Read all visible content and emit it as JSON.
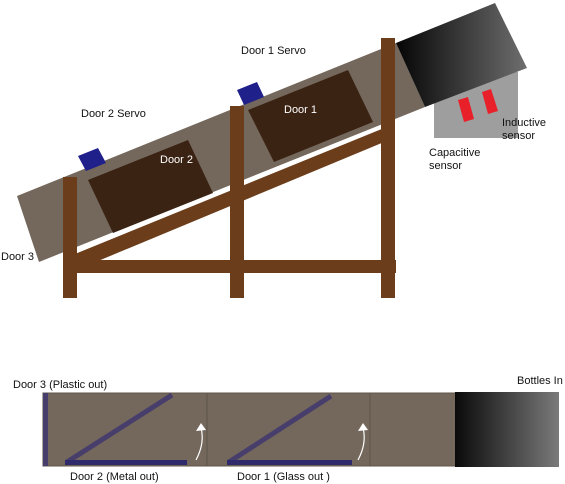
{
  "side_view": {
    "door1_servo_label": "Door 1 Servo",
    "door2_servo_label": "Door 2 Servo",
    "door1_label": "Door 1",
    "door2_label": "Door 2",
    "door3_label": "Door 3",
    "inductive_sensor_label": [
      "Inductive",
      "sensor"
    ],
    "capacitive_sensor_label": [
      "Capacitive",
      "sensor"
    ]
  },
  "top_view": {
    "door3_label": "Door 3 (Plastic out)",
    "door2_label": "Door 2 (Metal out)",
    "door1_label": "Door 1 (Glass out  )",
    "bottles_in_label": "Bottles In"
  },
  "colors": {
    "chute": "#74685c",
    "door_panel": "#3b2314",
    "frame_wood": "#6b3d1b",
    "servo": "#20208a",
    "sensor_red": "#e8202a",
    "sensor_grey": "#9e9e9e",
    "flap_purple": "#473e6c"
  }
}
